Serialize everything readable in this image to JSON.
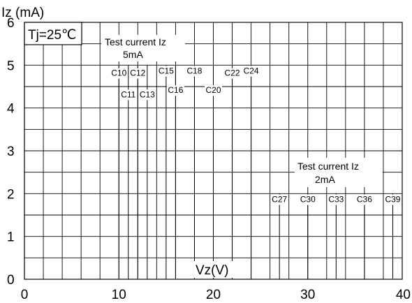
{
  "chart_data": {
    "type": "line",
    "ylabel": "Iz (mA)",
    "xlabel": "Vz(V)",
    "xlim": [
      0,
      40
    ],
    "ylim": [
      0,
      6
    ],
    "x_ticks": [
      "0",
      "10",
      "20",
      "30",
      "40"
    ],
    "y_ticks": [
      "0",
      "1",
      "2",
      "3",
      "4",
      "5",
      "6"
    ],
    "grid": true,
    "condition_label": "Tj=25℃",
    "annotations": [
      {
        "line1": "Test current Iz",
        "line2": "5mA"
      },
      {
        "line1": "Test current Iz",
        "line2": "2mA"
      }
    ],
    "series": [
      {
        "name": "C10",
        "vz": 10.0,
        "knee_iz": 5,
        "label_level": 4.75
      },
      {
        "name": "C11",
        "vz": 11.0,
        "knee_iz": 5,
        "label_level": 4.25
      },
      {
        "name": "C12",
        "vz": 12.0,
        "knee_iz": 5,
        "label_level": 4.75
      },
      {
        "name": "C13",
        "vz": 13.0,
        "knee_iz": 5,
        "label_level": 4.25
      },
      {
        "name": "C15",
        "vz": 15.0,
        "knee_iz": 5,
        "label_level": 4.8
      },
      {
        "name": "C16",
        "vz": 16.0,
        "knee_iz": 5,
        "label_level": 4.35
      },
      {
        "name": "C18",
        "vz": 18.0,
        "knee_iz": 5,
        "label_level": 4.8
      },
      {
        "name": "C20",
        "vz": 20.0,
        "knee_iz": 5,
        "label_level": 4.35
      },
      {
        "name": "C22",
        "vz": 22.0,
        "knee_iz": 5,
        "label_level": 4.75
      },
      {
        "name": "C24",
        "vz": 24.0,
        "knee_iz": 5,
        "label_level": 4.8
      },
      {
        "name": "C27",
        "vz": 27.0,
        "knee_iz": 2,
        "label_level": 1.8
      },
      {
        "name": "C30",
        "vz": 30.0,
        "knee_iz": 2,
        "label_level": 1.8
      },
      {
        "name": "C33",
        "vz": 33.0,
        "knee_iz": 2,
        "label_level": 1.8
      },
      {
        "name": "C36",
        "vz": 36.0,
        "knee_iz": 2,
        "label_level": 1.8
      },
      {
        "name": "C39",
        "vz": 39.0,
        "knee_iz": 2,
        "label_level": 1.8
      }
    ]
  }
}
